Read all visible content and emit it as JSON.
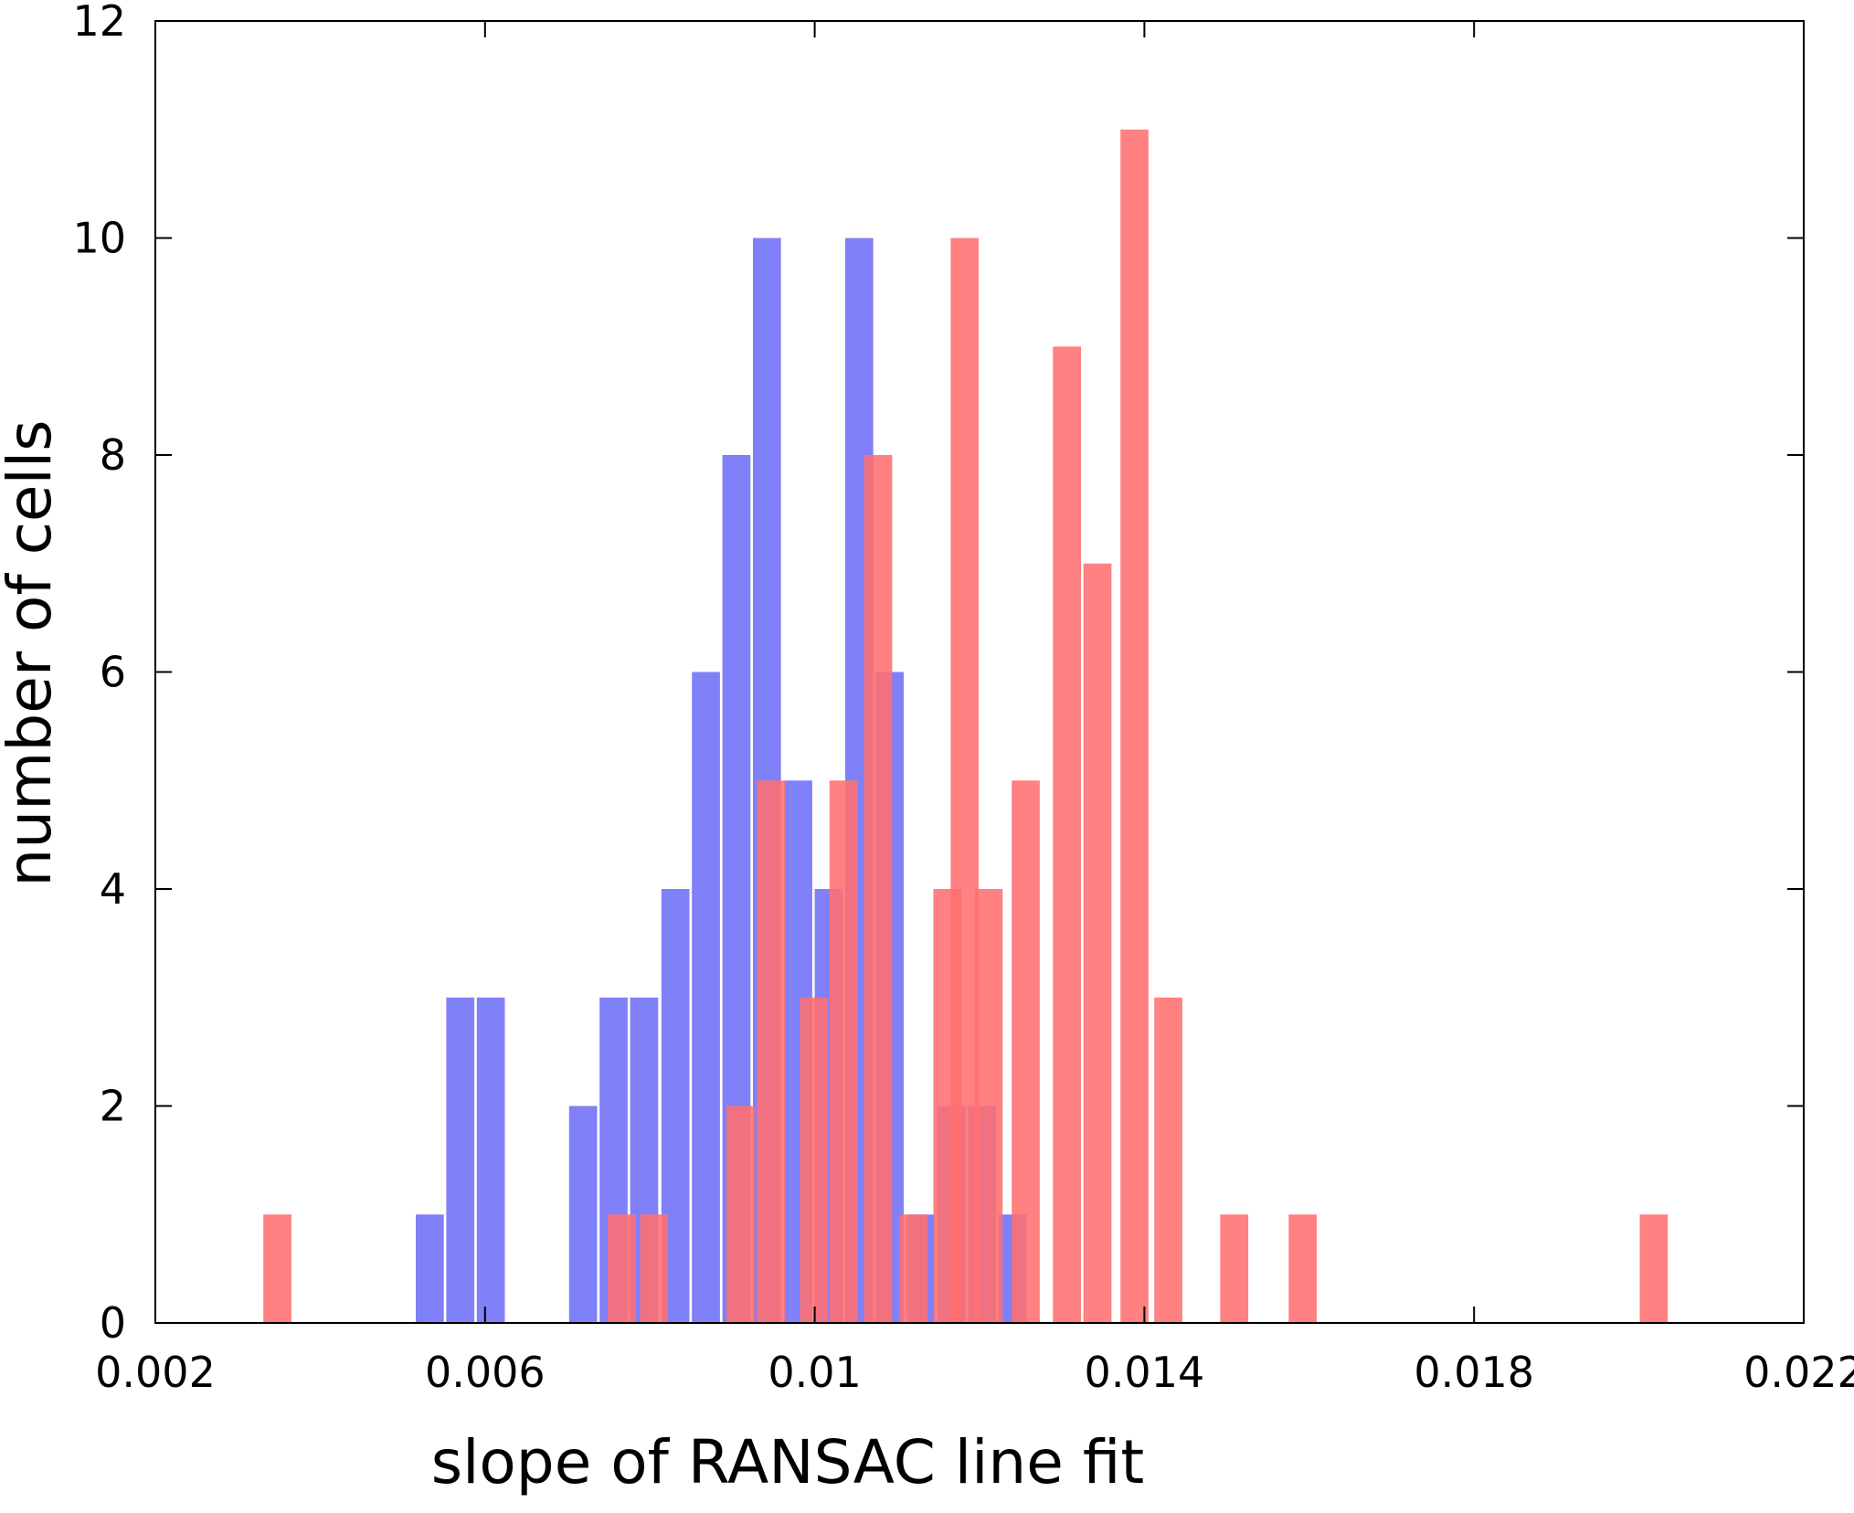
{
  "chart_data": {
    "type": "bar",
    "title": "",
    "xlabel": "slope of RANSAC line fit",
    "ylabel": "number of cells",
    "xlim": [
      0.002,
      0.022
    ],
    "ylim": [
      0,
      12
    ],
    "xticks": [
      "0.002",
      "0.006",
      "0.01",
      "0.014",
      "0.018",
      "0.022"
    ],
    "yticks": [
      "0",
      "2",
      "4",
      "6",
      "8",
      "10",
      "12"
    ],
    "bar_width": 0.00034,
    "grid": false,
    "legend": "none",
    "series": [
      {
        "color": "#8080f8",
        "opacity": 1.0,
        "points": [
          {
            "x": 0.00533,
            "y": 1
          },
          {
            "x": 0.0057,
            "y": 3
          },
          {
            "x": 0.00607,
            "y": 3
          },
          {
            "x": 0.00719,
            "y": 2
          },
          {
            "x": 0.00756,
            "y": 3
          },
          {
            "x": 0.00793,
            "y": 3
          },
          {
            "x": 0.00831,
            "y": 4
          },
          {
            "x": 0.00868,
            "y": 6
          },
          {
            "x": 0.00905,
            "y": 8
          },
          {
            "x": 0.00942,
            "y": 10
          },
          {
            "x": 0.0098,
            "y": 5
          },
          {
            "x": 0.01017,
            "y": 4
          },
          {
            "x": 0.01054,
            "y": 10
          },
          {
            "x": 0.01091,
            "y": 6
          },
          {
            "x": 0.01129,
            "y": 1
          },
          {
            "x": 0.01166,
            "y": 2
          },
          {
            "x": 0.01203,
            "y": 2
          },
          {
            "x": 0.0124,
            "y": 1
          }
        ]
      },
      {
        "color": "#ff7070",
        "opacity": 0.88,
        "points": [
          {
            "x": 0.00348,
            "y": 1
          },
          {
            "x": 0.00766,
            "y": 1
          },
          {
            "x": 0.00805,
            "y": 1
          },
          {
            "x": 0.0091,
            "y": 2
          },
          {
            "x": 0.00947,
            "y": 5
          },
          {
            "x": 0.00999,
            "y": 3
          },
          {
            "x": 0.01035,
            "y": 5
          },
          {
            "x": 0.01077,
            "y": 8
          },
          {
            "x": 0.0112,
            "y": 1
          },
          {
            "x": 0.01161,
            "y": 4
          },
          {
            "x": 0.01182,
            "y": 10
          },
          {
            "x": 0.01211,
            "y": 4
          },
          {
            "x": 0.01256,
            "y": 5
          },
          {
            "x": 0.01306,
            "y": 9
          },
          {
            "x": 0.01343,
            "y": 7
          },
          {
            "x": 0.01388,
            "y": 11
          },
          {
            "x": 0.01429,
            "y": 3
          },
          {
            "x": 0.01509,
            "y": 1
          },
          {
            "x": 0.01592,
            "y": 1
          },
          {
            "x": 0.02018,
            "y": 1
          }
        ]
      }
    ]
  }
}
